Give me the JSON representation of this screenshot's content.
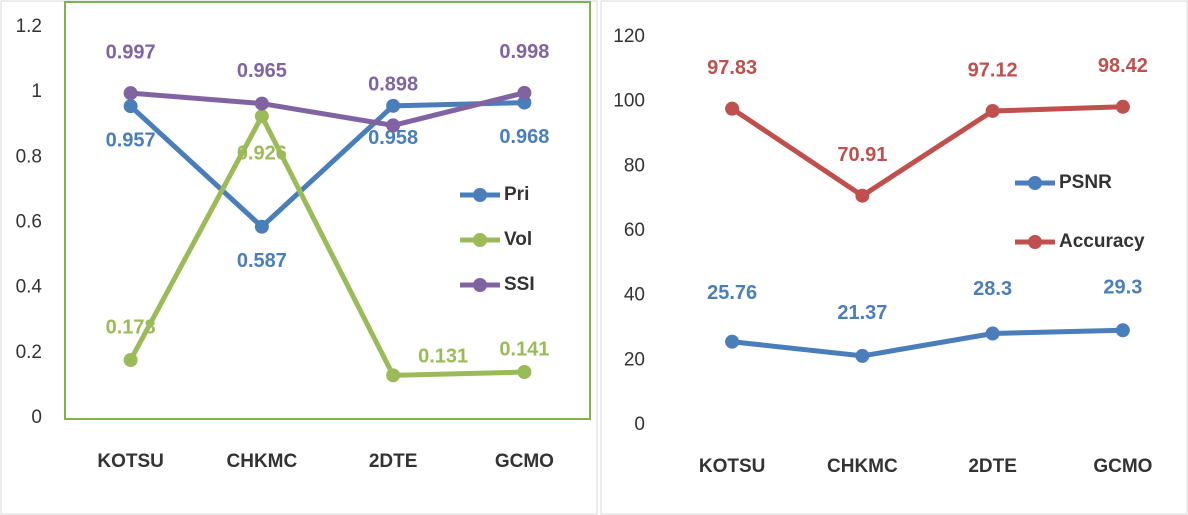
{
  "chart_data": [
    {
      "type": "line",
      "categories": [
        "KOTSU",
        "CHKMC",
        "2DTE",
        "GCMO"
      ],
      "series": [
        {
          "name": "Pri",
          "color": "#4a7ebb",
          "values": [
            0.957,
            0.587,
            0.958,
            0.968
          ]
        },
        {
          "name": "Vol",
          "color": "#9bbb59",
          "values": [
            0.178,
            0.926,
            0.131,
            0.141
          ]
        },
        {
          "name": "SSI",
          "color": "#8064a2",
          "values": [
            0.997,
            0.965,
            0.898,
            0.998
          ]
        }
      ],
      "ylim": [
        0,
        1.2
      ],
      "yticks": [
        0,
        0.2,
        0.4,
        0.6,
        0.8,
        1,
        1.2
      ],
      "legend": "right"
    },
    {
      "type": "line",
      "categories": [
        "KOTSU",
        "CHKMC",
        "2DTE",
        "GCMO"
      ],
      "series": [
        {
          "name": "PSNR",
          "color": "#4a7ebb",
          "values": [
            25.76,
            21.37,
            28.3,
            29.3
          ]
        },
        {
          "name": "Accuracy",
          "color": "#c0504d",
          "values": [
            97.83,
            70.91,
            97.12,
            98.42
          ]
        }
      ],
      "ylim": [
        0,
        120
      ],
      "yticks": [
        0,
        20,
        40,
        60,
        80,
        100,
        120
      ],
      "legend": "right"
    }
  ]
}
